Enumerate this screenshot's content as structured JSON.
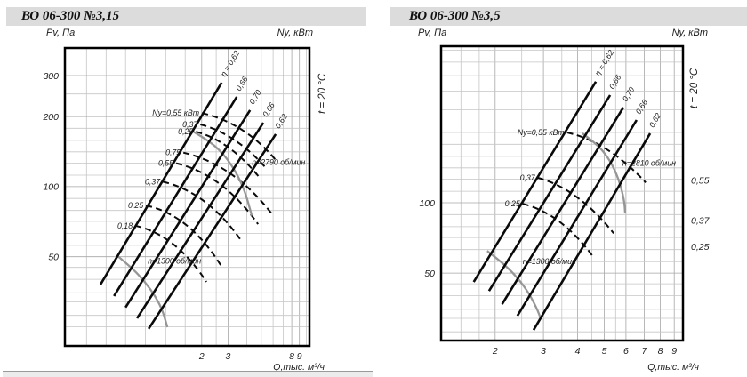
{
  "panels": [
    {
      "title": "ВО 06-300 №3,15",
      "pressure_axis_label": "Pv, Па",
      "power_axis_label": "Ny, кВт",
      "flow_axis_label": "Q,тыс. м³/ч",
      "temperature_note": "t = 20 °C",
      "chart_data": {
        "type": "line",
        "x_scale": "log",
        "y_scale": "log",
        "x_range": [
          0.244,
          10.5
        ],
        "y_range": [
          20.7,
          394
        ],
        "x_ticks": [
          2,
          3,
          8,
          9
        ],
        "y_ticks": [
          50,
          100,
          200,
          300
        ],
        "grid_x": [
          0.34,
          0.46,
          0.62,
          0.84,
          1.15,
          1.55,
          2,
          2.5,
          3,
          4,
          5,
          6,
          7,
          8,
          9,
          10
        ],
        "grid_y": [
          25,
          28,
          32,
          35,
          40,
          45,
          50,
          56,
          63,
          71,
          79,
          89,
          100,
          112,
          126,
          141,
          158,
          178,
          200,
          250,
          300,
          350
        ],
        "efficiency_lines": [
          {
            "label": "η = 0,62",
            "eta": 0.62,
            "from": [
              0.422,
              38.0
            ],
            "to": [
              2.72,
              280
            ]
          },
          {
            "label": "0,66",
            "eta": 0.66,
            "from": [
              0.519,
              33.9
            ],
            "to": [
              3.43,
              243
            ]
          },
          {
            "label": "0,70",
            "eta": 0.7,
            "from": [
              0.62,
              30.3
            ],
            "to": [
              4.21,
              213
            ]
          },
          {
            "label": "0,66",
            "eta": 0.66,
            "from": [
              0.74,
              27.2
            ],
            "to": [
              5.16,
              188
            ]
          },
          {
            "label": "0,62",
            "eta": 0.62,
            "from": [
              0.884,
              24.5
            ],
            "to": [
              6.25,
              168
            ]
          }
        ],
        "power_curves": [
          {
            "label": "Ny=0,55 кВт",
            "kw": 0.55,
            "bezier": [
              [
                2.01,
                207
              ],
              [
                3.87,
                188
              ],
              [
                6.25,
                130
              ]
            ]
          },
          {
            "label": "0,37",
            "kw": 0.37,
            "bezier": [
              [
                1.96,
                185
              ],
              [
                3.38,
                169
              ],
              [
                5.45,
                119
              ]
            ]
          },
          {
            "label": "0,25",
            "kw": 0.25,
            "bezier": [
              [
                1.83,
                172
              ],
              [
                3.07,
                158
              ],
              [
                4.89,
                109
              ]
            ]
          },
          {
            "label": "0,75",
            "kw": 0.75,
            "bezier": [
              [
                1.51,
                140
              ],
              [
                3.24,
                125
              ],
              [
                5.83,
                77
              ]
            ]
          },
          {
            "label": "0,55",
            "kw": 0.55,
            "bezier": [
              [
                1.35,
                126
              ],
              [
                2.75,
                113
              ],
              [
                4.76,
                69
              ]
            ]
          },
          {
            "label": "0,37",
            "kw": 0.37,
            "bezier": [
              [
                1.1,
                105
              ],
              [
                2.18,
                95
              ],
              [
                3.72,
                58
              ]
            ]
          },
          {
            "label": "0,25",
            "kw": 0.25,
            "bezier": [
              [
                0.849,
                83
              ],
              [
                1.64,
                76
              ],
              [
                2.68,
                46
              ]
            ]
          },
          {
            "label": "0,18",
            "kw": 0.18,
            "bezier": [
              [
                0.72,
                68
              ],
              [
                1.35,
                62
              ],
              [
                2.15,
                39
              ]
            ]
          }
        ],
        "speed_curves": [
          {
            "label": "n=2790 об/мин",
            "rpm": 2790,
            "label_at": [
              4.33,
              124
            ],
            "pts": [
              [
                1.71,
                174
              ],
              [
                2.18,
                159
              ],
              [
                2.75,
                140
              ],
              [
                3.33,
                118
              ],
              [
                3.87,
                97
              ],
              [
                4.33,
                75
              ]
            ]
          },
          {
            "label": "n=1300 об/мин",
            "rpm": 1300,
            "label_at": [
              0.872,
              46.6
            ],
            "pts": [
              [
                0.548,
                50.4
              ],
              [
                0.681,
                44.9
              ],
              [
                0.837,
                39.0
              ],
              [
                0.986,
                33.6
              ],
              [
                1.1,
                29.2
              ],
              [
                1.18,
                24.9
              ]
            ]
          }
        ]
      }
    },
    {
      "title": "ВО 06-300 №3,5",
      "pressure_axis_label": "Pv, Па",
      "power_axis_label": "Ny, кВт",
      "flow_axis_label": "Q,тыс. м³/ч",
      "temperature_note": "t = 20 °C",
      "chart_data": {
        "type": "line",
        "x_scale": "log",
        "y_scale": "log",
        "x_range": [
          1.27,
          9.68
        ],
        "y_range": [
          25.7,
          468
        ],
        "x_ticks": [
          2,
          3,
          4,
          5,
          6,
          7,
          8,
          9
        ],
        "y_ticks": [
          50,
          100
        ],
        "grid_x": [
          1.5,
          1.75,
          2,
          2.5,
          3,
          3.5,
          4,
          4.5,
          5,
          5.5,
          6,
          7,
          8,
          9
        ],
        "grid_y": [
          28,
          32,
          35,
          40,
          45,
          50,
          56,
          63,
          71,
          79,
          89,
          100,
          112,
          126,
          141,
          158,
          178,
          200,
          250,
          300,
          350,
          400,
          450
        ],
        "efficiency_lines": [
          {
            "label": "η = 0,62",
            "eta": 0.62,
            "from": [
              1.67,
              45.8
            ],
            "to": [
              4.66,
              330
            ]
          },
          {
            "label": "0,66",
            "eta": 0.66,
            "from": [
              1.9,
              41.9
            ],
            "to": [
              5.25,
              289
            ]
          },
          {
            "label": "0,70",
            "eta": 0.7,
            "from": [
              2.12,
              36.8
            ],
            "to": [
              5.87,
              256
            ]
          },
          {
            "label": "0,66",
            "eta": 0.66,
            "from": [
              2.41,
              32.8
            ],
            "to": [
              6.56,
              226
            ]
          },
          {
            "label": "0,62",
            "eta": 0.62,
            "from": [
              2.76,
              28.5
            ],
            "to": [
              7.35,
              198
            ]
          }
        ],
        "power_curves": [
          {
            "label": "Ny=0,55 кВт",
            "kw": 0.55,
            "bezier": [
              [
                3.66,
                200
              ],
              [
                5.17,
                182
              ],
              [
                7.08,
                122
              ]
            ]
          },
          {
            "label": "0,37",
            "kw": 0.37,
            "bezier": [
              [
                2.86,
                128
              ],
              [
                4.01,
                115
              ],
              [
                5.41,
                74
              ]
            ]
          },
          {
            "label": "0,25",
            "kw": 0.25,
            "bezier": [
              [
                2.52,
                99
              ],
              [
                3.5,
                90
              ],
              [
                4.59,
                58
              ]
            ]
          }
        ],
        "speed_curves": [
          {
            "label": "n=2810 об/мин",
            "rpm": 2810,
            "label_at": [
              5.82,
              144
            ],
            "pts": [
              [
                4.16,
                198
              ],
              [
                4.72,
                178
              ],
              [
                5.25,
                152
              ],
              [
                5.65,
                126
              ],
              [
                5.91,
                103
              ],
              [
                5.96,
                90
              ]
            ]
          },
          {
            "label": "n=1300 об/мин",
            "rpm": 1300,
            "label_at": [
              2.52,
              54.6
            ],
            "pts": [
              [
                1.87,
                62.2
              ],
              [
                2.12,
                55.6
              ],
              [
                2.41,
                47.9
              ],
              [
                2.66,
                40.9
              ],
              [
                2.84,
                35.2
              ],
              [
                2.93,
                32.0
              ]
            ]
          }
        ],
        "power_axis_values": [
          {
            "label": "0,55",
            "p": 125
          },
          {
            "label": "0,37",
            "p": 84
          },
          {
            "label": "0,25",
            "p": 65
          }
        ]
      }
    }
  ],
  "colors": {
    "band_bg": "#dcdcdc",
    "grid": "#c6c6c6",
    "grid_major": "#a6a6a6",
    "line": "#0a0a0a",
    "speed_curve": "#969696",
    "text": "#1c1c1c"
  }
}
